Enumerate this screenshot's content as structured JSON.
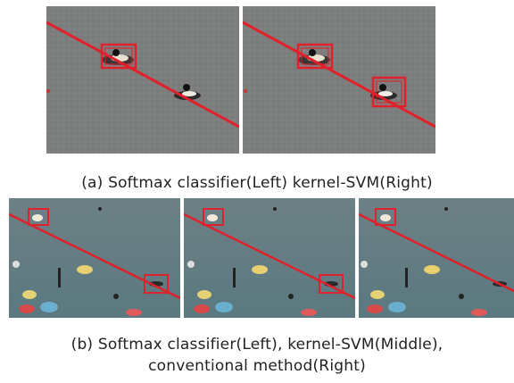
{
  "figure": {
    "caption_a": "(a) Softmax classifier(Left) kernel-SVM(Right)",
    "caption_b_line1": "(b) Softmax classifier(Left), kernel-SVM(Middle),",
    "caption_b_line2": "conventional method(Right)",
    "colors": {
      "water_top": "#7c7e7d",
      "water_bottom": "#5f7a7f",
      "annotation": "#e0202a"
    },
    "panels": [
      {
        "group": "a",
        "position": "left",
        "method": "softmax",
        "detections": 1
      },
      {
        "group": "a",
        "position": "right",
        "method": "kernel-svm",
        "detections": 2
      },
      {
        "group": "b",
        "position": "left",
        "method": "softmax",
        "detections": 2
      },
      {
        "group": "b",
        "position": "middle",
        "method": "kernel-svm",
        "detections": 2
      },
      {
        "group": "b",
        "position": "right",
        "method": "conventional",
        "detections": 1
      }
    ]
  }
}
